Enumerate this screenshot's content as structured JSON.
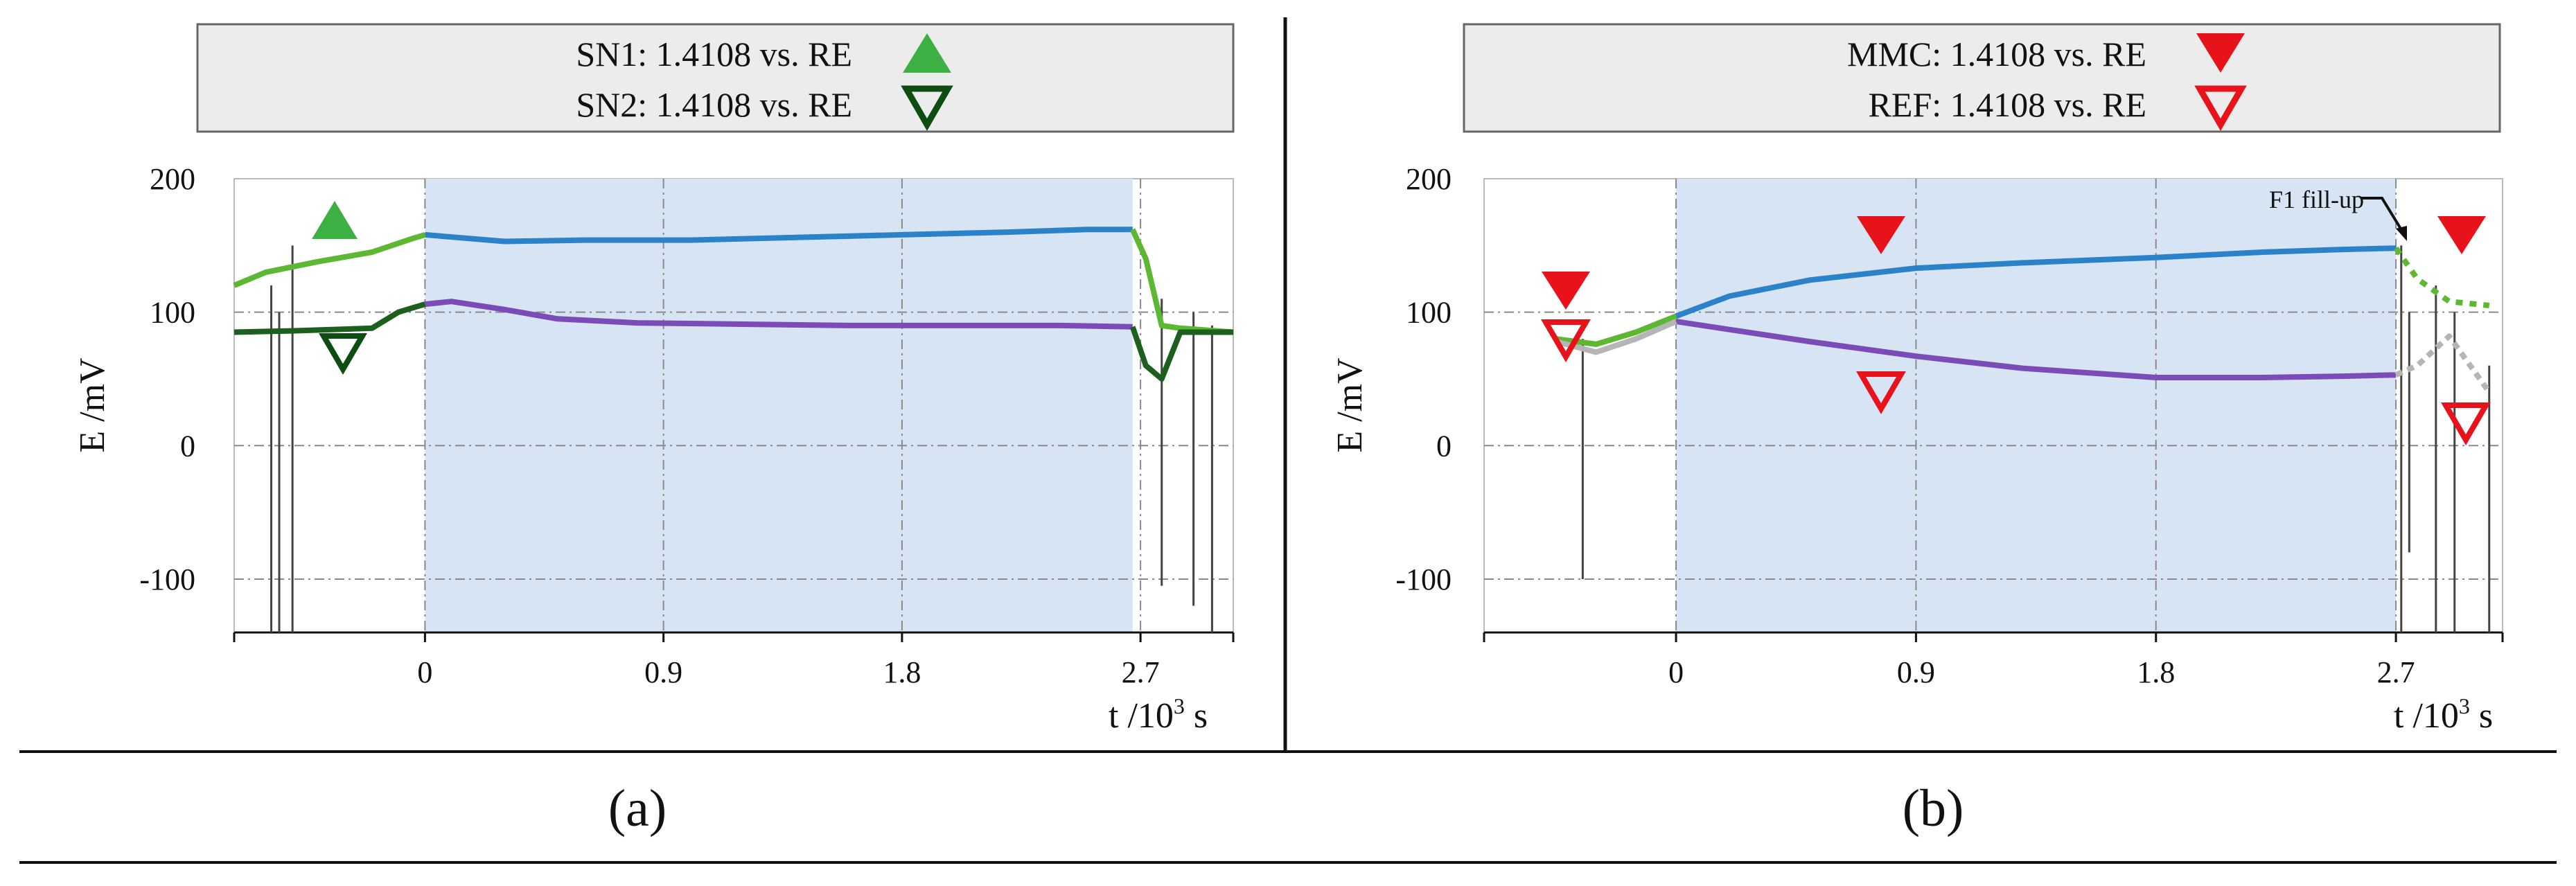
{
  "chart_data": [
    {
      "panel": "(a)",
      "type": "line",
      "legend": [
        {
          "label": "SN1: 1.4108 vs. RE",
          "marker": "triangle-up-filled",
          "color": "#3cb043"
        },
        {
          "label": "SN2: 1.4108 vs. RE",
          "marker": "triangle-down-open",
          "color": "#0d4d12"
        }
      ],
      "ylabel": "E /mV",
      "xlabel": "t /10^3 s",
      "xlabel_main": "t /10",
      "xlabel_exp": "3",
      "xlabel_unit": " s",
      "xticks": [
        "0",
        "0.9",
        "1.8",
        "2.7"
      ],
      "yticks": [
        "200",
        "100",
        "0",
        "-100"
      ],
      "xlim": [
        -0.72,
        3.05
      ],
      "ylim": [
        -140,
        200
      ],
      "shaded_region": [
        0.0,
        2.67
      ],
      "series": [
        {
          "name": "SN1: 1.4108 vs. RE",
          "color": "#2c82c9",
          "x": [
            -0.72,
            -0.6,
            -0.4,
            -0.2,
            -0.05,
            0.0,
            0.3,
            0.6,
            1.0,
            1.4,
            1.8,
            2.2,
            2.5,
            2.67,
            2.72,
            2.78,
            2.85,
            3.05
          ],
          "y": [
            120,
            130,
            138,
            145,
            155,
            158,
            153,
            154,
            154,
            156,
            158,
            160,
            162,
            162,
            140,
            90,
            88,
            85
          ]
        },
        {
          "name": "SN2: 1.4108 vs. RE",
          "color": "#7b4bb7",
          "x": [
            -0.72,
            -0.5,
            -0.2,
            -0.1,
            0.0,
            0.1,
            0.3,
            0.5,
            0.8,
            1.2,
            1.6,
            2.0,
            2.4,
            2.67,
            2.72,
            2.78,
            2.85,
            3.05
          ],
          "y": [
            85,
            86,
            88,
            100,
            106,
            108,
            102,
            95,
            92,
            91,
            90,
            90,
            90,
            89,
            60,
            50,
            85,
            85
          ]
        }
      ]
    },
    {
      "panel": "(b)",
      "type": "line",
      "legend": [
        {
          "label": "MMC: 1.4108 vs. RE",
          "marker": "triangle-down-filled",
          "color": "#e8121a"
        },
        {
          "label": "REF: 1.4108 vs. RE",
          "marker": "triangle-down-open",
          "color": "#e8121a"
        }
      ],
      "annotation": "F1 fill-up",
      "ylabel": "E /mV",
      "xlabel": "t /10^3 s",
      "xlabel_main": "t /10",
      "xlabel_exp": "3",
      "xlabel_unit": " s",
      "xticks": [
        "0",
        "0.9",
        "1.8",
        "2.7"
      ],
      "yticks": [
        "200",
        "100",
        "0",
        "-100"
      ],
      "xlim": [
        -0.72,
        3.1
      ],
      "ylim": [
        -140,
        200
      ],
      "shaded_region": [
        0.0,
        2.7
      ],
      "series": [
        {
          "name": "MMC: 1.4108 vs. RE",
          "color": "#2c82c9",
          "x": [
            -0.45,
            -0.3,
            -0.15,
            0.0,
            0.2,
            0.5,
            0.9,
            1.3,
            1.8,
            2.2,
            2.5,
            2.7,
            2.78,
            2.9,
            3.05
          ],
          "y": [
            80,
            76,
            85,
            97,
            112,
            124,
            133,
            137,
            141,
            145,
            147,
            148,
            125,
            108,
            105
          ]
        },
        {
          "name": "REF: 1.4108 vs. RE",
          "color": "#7b4bb7",
          "x": [
            -0.45,
            -0.3,
            -0.15,
            0.0,
            0.2,
            0.5,
            0.9,
            1.3,
            1.8,
            2.2,
            2.5,
            2.7,
            2.78,
            2.9,
            3.05
          ],
          "y": [
            78,
            70,
            80,
            93,
            87,
            78,
            67,
            58,
            51,
            51,
            52,
            53,
            60,
            82,
            40
          ]
        }
      ]
    }
  ],
  "panel_labels": [
    "(a)",
    "(b)"
  ]
}
